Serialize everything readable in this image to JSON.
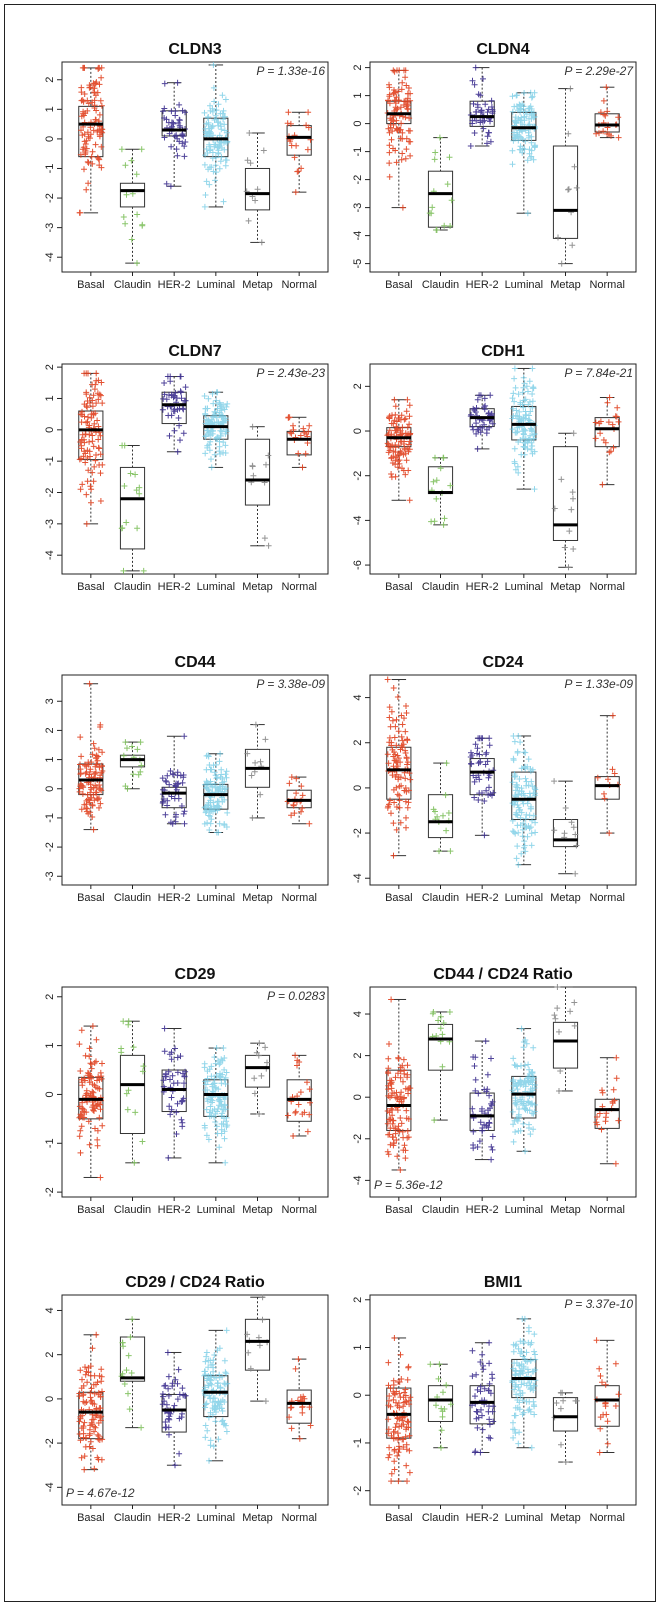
{
  "categories": [
    "Basal",
    "Claudin",
    "HER-2",
    "Luminal",
    "Metap",
    "Normal"
  ],
  "colors": {
    "Basal": "#e0401e",
    "Claudin": "#7dbf5a",
    "HER-2": "#3c2f8f",
    "Luminal": "#6ec9e4",
    "Metap": "#888888",
    "Normal": "#e0401e"
  },
  "chart_data": [
    {
      "type": "box",
      "title": "CLDN3",
      "pvalue": "P = 1.33e-16",
      "pvalue_pos": "top-right",
      "ylim": [
        -4.5,
        2.6
      ],
      "yticks": [
        -4,
        -3,
        -2,
        -1,
        0,
        1,
        2
      ],
      "boxes": [
        {
          "category": "Basal",
          "min": -2.5,
          "q1": -0.6,
          "median": 0.5,
          "q3": 1.1,
          "max": 2.4,
          "n": 100,
          "spread": 1.1
        },
        {
          "category": "Claudin",
          "min": -4.2,
          "q1": -2.3,
          "median": -1.75,
          "q3": -1.5,
          "max": -0.35,
          "n": 14,
          "spread": 0.9
        },
        {
          "category": "HER-2",
          "min": -1.6,
          "q1": 0.1,
          "median": 0.3,
          "q3": 0.95,
          "max": 1.9,
          "n": 45,
          "spread": 0.7
        },
        {
          "category": "Luminal",
          "min": -2.3,
          "q1": -0.6,
          "median": 0.0,
          "q3": 0.7,
          "max": 2.5,
          "n": 110,
          "spread": 0.8
        },
        {
          "category": "Metap",
          "min": -3.5,
          "q1": -2.4,
          "median": -1.85,
          "q3": -1.0,
          "max": 0.2,
          "n": 10,
          "spread": 0.9
        },
        {
          "category": "Normal",
          "min": -1.8,
          "q1": -0.55,
          "median": 0.05,
          "q3": 0.45,
          "max": 0.9,
          "n": 20,
          "spread": 0.6
        }
      ]
    },
    {
      "type": "box",
      "title": "CLDN4",
      "pvalue": "P = 2.29e-27",
      "pvalue_pos": "top-right",
      "ylim": [
        -5.3,
        2.2
      ],
      "yticks": [
        -5,
        -4,
        -3,
        -2,
        -1,
        0,
        1,
        2
      ],
      "boxes": [
        {
          "category": "Basal",
          "min": -3.0,
          "q1": 0.0,
          "median": 0.35,
          "q3": 0.8,
          "max": 1.9,
          "n": 100,
          "spread": 0.8
        },
        {
          "category": "Claudin",
          "min": -3.8,
          "q1": -3.7,
          "median": -2.5,
          "q3": -1.7,
          "max": -0.5,
          "n": 14,
          "spread": 0.9
        },
        {
          "category": "HER-2",
          "min": -0.8,
          "q1": -0.1,
          "median": 0.25,
          "q3": 0.8,
          "max": 2.0,
          "n": 45,
          "spread": 0.5
        },
        {
          "category": "Luminal",
          "min": -3.2,
          "q1": -0.6,
          "median": -0.15,
          "q3": 0.4,
          "max": 1.1,
          "n": 110,
          "spread": 0.6
        },
        {
          "category": "Metap",
          "min": -5.0,
          "q1": -4.1,
          "median": -3.1,
          "q3": -0.8,
          "max": 1.25,
          "n": 10,
          "spread": 1.3
        },
        {
          "category": "Normal",
          "min": -0.5,
          "q1": -0.3,
          "median": -0.05,
          "q3": 0.35,
          "max": 1.3,
          "n": 20,
          "spread": 0.3
        }
      ]
    },
    {
      "type": "box",
      "title": "CLDN7",
      "pvalue": "P = 2.43e-23",
      "pvalue_pos": "top-right",
      "ylim": [
        -4.6,
        2.1
      ],
      "yticks": [
        -4,
        -3,
        -2,
        -1,
        0,
        1,
        2
      ],
      "boxes": [
        {
          "category": "Basal",
          "min": -3.0,
          "q1": -0.95,
          "median": 0.0,
          "q3": 0.6,
          "max": 1.8,
          "n": 100,
          "spread": 1.0
        },
        {
          "category": "Claudin",
          "min": -4.5,
          "q1": -3.8,
          "median": -2.2,
          "q3": -1.2,
          "max": -0.5,
          "n": 14,
          "spread": 1.0
        },
        {
          "category": "HER-2",
          "min": -0.7,
          "q1": 0.2,
          "median": 0.8,
          "q3": 1.2,
          "max": 1.7,
          "n": 45,
          "spread": 0.5
        },
        {
          "category": "Luminal",
          "min": -1.2,
          "q1": -0.3,
          "median": 0.1,
          "q3": 0.45,
          "max": 1.2,
          "n": 110,
          "spread": 0.5
        },
        {
          "category": "Metap",
          "min": -3.7,
          "q1": -2.4,
          "median": -1.6,
          "q3": -0.3,
          "max": 0.1,
          "n": 10,
          "spread": 0.9
        },
        {
          "category": "Normal",
          "min": -1.2,
          "q1": -0.8,
          "median": -0.3,
          "q3": -0.05,
          "max": 0.4,
          "n": 20,
          "spread": 0.4
        }
      ]
    },
    {
      "type": "box",
      "title": "CDH1",
      "pvalue": "P = 7.84e-21",
      "pvalue_pos": "top-right",
      "ylim": [
        -6.4,
        3.0
      ],
      "yticks": [
        -6,
        -4,
        -2,
        0,
        2
      ],
      "boxes": [
        {
          "category": "Basal",
          "min": -3.1,
          "q1": -0.7,
          "median": -0.3,
          "q3": 0.15,
          "max": 1.4,
          "n": 100,
          "spread": 0.8
        },
        {
          "category": "Claudin",
          "min": -4.2,
          "q1": -2.8,
          "median": -2.75,
          "q3": -1.6,
          "max": -1.2,
          "n": 14,
          "spread": 0.8
        },
        {
          "category": "HER-2",
          "min": -0.8,
          "q1": 0.2,
          "median": 0.6,
          "q3": 1.0,
          "max": 1.6,
          "n": 45,
          "spread": 0.5
        },
        {
          "category": "Luminal",
          "min": -2.6,
          "q1": -0.4,
          "median": 0.3,
          "q3": 1.1,
          "max": 2.8,
          "n": 110,
          "spread": 1.0
        },
        {
          "category": "Metap",
          "min": -6.1,
          "q1": -4.9,
          "median": -4.2,
          "q3": -0.7,
          "max": -0.1,
          "n": 10,
          "spread": 1.5
        },
        {
          "category": "Normal",
          "min": -2.4,
          "q1": -0.7,
          "median": 0.1,
          "q3": 0.6,
          "max": 1.5,
          "n": 20,
          "spread": 0.7
        }
      ]
    },
    {
      "type": "box",
      "title": "CD44",
      "pvalue": "P = 3.38e-09",
      "pvalue_pos": "top-right",
      "ylim": [
        -3.3,
        3.9
      ],
      "yticks": [
        -3,
        -2,
        -1,
        0,
        1,
        2,
        3
      ],
      "boxes": [
        {
          "category": "Basal",
          "min": -1.4,
          "q1": -0.2,
          "median": 0.3,
          "q3": 0.85,
          "max": 3.6,
          "n": 100,
          "spread": 0.7
        },
        {
          "category": "Claudin",
          "min": 0.0,
          "q1": 0.75,
          "median": 1.0,
          "q3": 1.15,
          "max": 1.6,
          "n": 14,
          "spread": 0.4
        },
        {
          "category": "HER-2",
          "min": -1.2,
          "q1": -0.65,
          "median": -0.15,
          "q3": 0.05,
          "max": 1.8,
          "n": 45,
          "spread": 0.5
        },
        {
          "category": "Luminal",
          "min": -1.5,
          "q1": -0.7,
          "median": -0.2,
          "q3": 0.15,
          "max": 1.2,
          "n": 110,
          "spread": 0.6
        },
        {
          "category": "Metap",
          "min": -1.0,
          "q1": 0.05,
          "median": 0.7,
          "q3": 1.35,
          "max": 2.2,
          "n": 10,
          "spread": 0.6
        },
        {
          "category": "Normal",
          "min": -1.2,
          "q1": -0.65,
          "median": -0.4,
          "q3": -0.05,
          "max": 0.4,
          "n": 20,
          "spread": 0.4
        }
      ]
    },
    {
      "type": "box",
      "title": "CD24",
      "pvalue": "P = 1.33e-09",
      "pvalue_pos": "top-right",
      "ylim": [
        -4.3,
        5.0
      ],
      "yticks": [
        -4,
        -2,
        0,
        2,
        4
      ],
      "boxes": [
        {
          "category": "Basal",
          "min": -3.0,
          "q1": -0.5,
          "median": 0.8,
          "q3": 1.8,
          "max": 4.8,
          "n": 100,
          "spread": 1.3
        },
        {
          "category": "Claudin",
          "min": -2.8,
          "q1": -2.2,
          "median": -1.5,
          "q3": -0.3,
          "max": 1.1,
          "n": 14,
          "spread": 0.9
        },
        {
          "category": "HER-2",
          "min": -2.1,
          "q1": -0.3,
          "median": 0.7,
          "q3": 1.3,
          "max": 2.2,
          "n": 45,
          "spread": 0.8
        },
        {
          "category": "Luminal",
          "min": -3.4,
          "q1": -1.4,
          "median": -0.5,
          "q3": 0.7,
          "max": 2.3,
          "n": 110,
          "spread": 1.1
        },
        {
          "category": "Metap",
          "min": -3.8,
          "q1": -2.6,
          "median": -2.3,
          "q3": -1.4,
          "max": 0.3,
          "n": 10,
          "spread": 0.7
        },
        {
          "category": "Normal",
          "min": -2.0,
          "q1": -0.5,
          "median": 0.1,
          "q3": 0.5,
          "max": 3.2,
          "n": 10,
          "spread": 0.8
        }
      ]
    },
    {
      "type": "box",
      "title": "CD29",
      "pvalue": "P = 0.0283",
      "pvalue_pos": "top-right",
      "ylim": [
        -2.1,
        2.2
      ],
      "yticks": [
        -2,
        -1,
        0,
        1,
        2
      ],
      "boxes": [
        {
          "category": "Basal",
          "min": -1.7,
          "q1": -0.5,
          "median": -0.1,
          "q3": 0.35,
          "max": 1.4,
          "n": 100,
          "spread": 0.5
        },
        {
          "category": "Claudin",
          "min": -1.4,
          "q1": -0.8,
          "median": 0.2,
          "q3": 0.8,
          "max": 1.5,
          "n": 14,
          "spread": 0.7
        },
        {
          "category": "HER-2",
          "min": -1.3,
          "q1": -0.35,
          "median": 0.1,
          "q3": 0.5,
          "max": 1.35,
          "n": 45,
          "spread": 0.5
        },
        {
          "category": "Luminal",
          "min": -1.4,
          "q1": -0.45,
          "median": 0.0,
          "q3": 0.3,
          "max": 0.95,
          "n": 110,
          "spread": 0.45
        },
        {
          "category": "Metap",
          "min": -0.4,
          "q1": 0.15,
          "median": 0.55,
          "q3": 0.8,
          "max": 1.05,
          "n": 10,
          "spread": 0.35
        },
        {
          "category": "Normal",
          "min": -0.85,
          "q1": -0.55,
          "median": -0.1,
          "q3": 0.3,
          "max": 0.8,
          "n": 20,
          "spread": 0.4
        }
      ]
    },
    {
      "type": "box",
      "title": "CD44 / CD24 Ratio",
      "pvalue": "P = 5.36e-12",
      "pvalue_pos": "bottom-left",
      "ylim": [
        -4.8,
        5.3
      ],
      "yticks": [
        -4,
        -2,
        0,
        2,
        4
      ],
      "boxes": [
        {
          "category": "Basal",
          "min": -3.5,
          "q1": -1.6,
          "median": -0.4,
          "q3": 1.3,
          "max": 4.7,
          "n": 100,
          "spread": 1.4
        },
        {
          "category": "Claudin",
          "min": -1.1,
          "q1": 1.3,
          "median": 2.8,
          "q3": 3.5,
          "max": 4.1,
          "n": 14,
          "spread": 1.0
        },
        {
          "category": "HER-2",
          "min": -3.0,
          "q1": -1.6,
          "median": -0.9,
          "q3": 0.2,
          "max": 2.7,
          "n": 45,
          "spread": 1.0
        },
        {
          "category": "Luminal",
          "min": -2.6,
          "q1": -1.0,
          "median": 0.15,
          "q3": 1.0,
          "max": 3.3,
          "n": 110,
          "spread": 1.0
        },
        {
          "category": "Metap",
          "min": 0.3,
          "q1": 1.4,
          "median": 2.7,
          "q3": 3.6,
          "max": 5.3,
          "n": 10,
          "spread": 0.9
        },
        {
          "category": "Normal",
          "min": -3.2,
          "q1": -1.5,
          "median": -0.6,
          "q3": -0.1,
          "max": 1.9,
          "n": 20,
          "spread": 0.8
        }
      ]
    },
    {
      "type": "box",
      "title": "CD29 / CD24 Ratio",
      "pvalue": "P = 4.67e-12",
      "pvalue_pos": "bottom-left",
      "ylim": [
        -4.8,
        4.7
      ],
      "yticks": [
        -4,
        -2,
        0,
        2,
        4
      ],
      "boxes": [
        {
          "category": "Basal",
          "min": -3.2,
          "q1": -1.8,
          "median": -0.6,
          "q3": 0.3,
          "max": 2.9,
          "n": 100,
          "spread": 1.1
        },
        {
          "category": "Claudin",
          "min": -1.3,
          "q1": 0.8,
          "median": 0.95,
          "q3": 2.8,
          "max": 3.6,
          "n": 14,
          "spread": 1.0
        },
        {
          "category": "HER-2",
          "min": -3.0,
          "q1": -1.5,
          "median": -0.5,
          "q3": 0.2,
          "max": 2.1,
          "n": 45,
          "spread": 0.8
        },
        {
          "category": "Luminal",
          "min": -2.8,
          "q1": -0.8,
          "median": 0.3,
          "q3": 1.05,
          "max": 3.1,
          "n": 110,
          "spread": 1.0
        },
        {
          "category": "Metap",
          "min": -0.1,
          "q1": 1.3,
          "median": 2.6,
          "q3": 3.6,
          "max": 4.6,
          "n": 10,
          "spread": 0.9
        },
        {
          "category": "Normal",
          "min": -1.8,
          "q1": -1.1,
          "median": -0.2,
          "q3": 0.4,
          "max": 1.8,
          "n": 20,
          "spread": 0.7
        }
      ]
    },
    {
      "type": "box",
      "title": "BMI1",
      "pvalue": "P = 3.37e-10",
      "pvalue_pos": "top-right",
      "ylim": [
        -2.3,
        2.1
      ],
      "yticks": [
        -2,
        -1,
        0,
        1,
        2
      ],
      "boxes": [
        {
          "category": "Basal",
          "min": -1.8,
          "q1": -0.9,
          "median": -0.4,
          "q3": 0.15,
          "max": 1.2,
          "n": 100,
          "spread": 0.6
        },
        {
          "category": "Claudin",
          "min": -1.1,
          "q1": -0.55,
          "median": -0.1,
          "q3": 0.2,
          "max": 0.65,
          "n": 14,
          "spread": 0.4
        },
        {
          "category": "HER-2",
          "min": -1.2,
          "q1": -0.6,
          "median": -0.15,
          "q3": 0.2,
          "max": 1.1,
          "n": 45,
          "spread": 0.5
        },
        {
          "category": "Luminal",
          "min": -1.1,
          "q1": -0.05,
          "median": 0.35,
          "q3": 0.75,
          "max": 1.6,
          "n": 110,
          "spread": 0.5
        },
        {
          "category": "Metap",
          "min": -1.4,
          "q1": -0.75,
          "median": -0.45,
          "q3": -0.05,
          "max": 0.05,
          "n": 10,
          "spread": 0.4
        },
        {
          "category": "Normal",
          "min": -1.2,
          "q1": -0.65,
          "median": -0.1,
          "q3": 0.2,
          "max": 1.15,
          "n": 20,
          "spread": 0.45
        }
      ]
    }
  ]
}
